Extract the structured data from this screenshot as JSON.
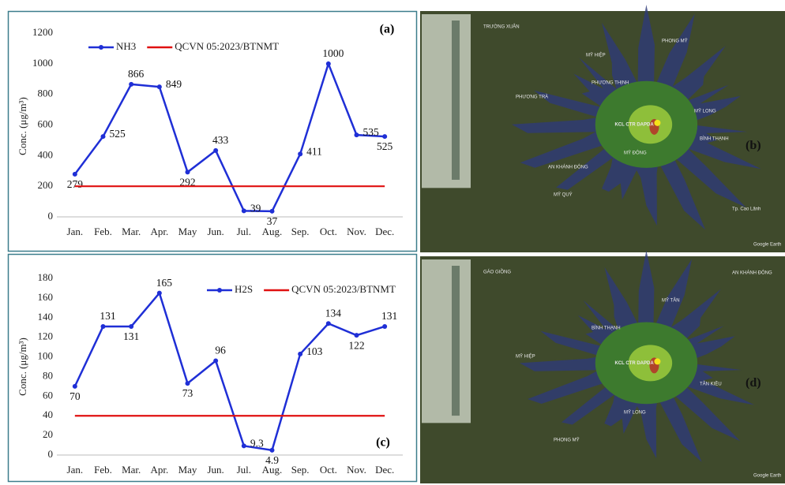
{
  "chart_data": [
    {
      "type": "line",
      "panel_label": "(a)",
      "y_label": "Conc. (μg/m³)",
      "categories": [
        "Jan.",
        "Feb.",
        "Mar.",
        "Apr.",
        "May",
        "Jun.",
        "Jul.",
        "Aug.",
        "Sep.",
        "Oct.",
        "Nov.",
        "Dec."
      ],
      "series": [
        {
          "name": "NH3",
          "color": "#1f2fd6",
          "markers": true,
          "show_values": true,
          "values": [
            279,
            525,
            866,
            849,
            292,
            433,
            39,
            37,
            411,
            1000,
            535,
            525
          ]
        },
        {
          "name": "QCVN 05:2023/BTNMT",
          "color": "#e01010",
          "markers": false,
          "show_values": false,
          "values": [
            200,
            200,
            200,
            200,
            200,
            200,
            200,
            200,
            200,
            200,
            200,
            200
          ]
        }
      ],
      "ylim": [
        0,
        1200
      ],
      "yticks": [
        0,
        200,
        400,
        600,
        800,
        1000,
        1200
      ],
      "grid": false
    },
    {
      "type": "line",
      "panel_label": "(c)",
      "y_label": "Conc. (μg/m³)",
      "categories": [
        "Jan.",
        "Feb.",
        "Mar.",
        "Apr.",
        "May",
        "Jun.",
        "Jul.",
        "Aug.",
        "Sep.",
        "Oct.",
        "Nov.",
        "Dec."
      ],
      "series": [
        {
          "name": "H2S",
          "color": "#1f2fd6",
          "markers": true,
          "show_values": true,
          "values": [
            70,
            131,
            131,
            165,
            73,
            96,
            9.3,
            4.9,
            103,
            134,
            122,
            131
          ]
        },
        {
          "name": "QCVN 05:2023/BTNMT",
          "color": "#e01010",
          "markers": false,
          "show_values": false,
          "values": [
            40,
            40,
            40,
            40,
            40,
            40,
            40,
            40,
            40,
            40,
            40,
            40
          ]
        }
      ],
      "ylim": [
        0,
        180
      ],
      "yticks": [
        0,
        20,
        40,
        60,
        80,
        100,
        120,
        140,
        160,
        180
      ],
      "grid": false
    }
  ],
  "maps": [
    {
      "panel_label": "(b)",
      "site_label": "KCL CTR DAPDA",
      "places": [
        "TRƯỜNG XUÂN",
        "PHƯƠNG THỊNH",
        "BÌNH THẠNH",
        "MỸ QUÝ",
        "PHONG MỸ",
        "PHƯƠNG TRÀ",
        "MỸ ĐÔNG",
        "Tp. Cao Lãnh",
        "MỸ HIỆP",
        "MỸ LONG",
        "AN KHÁNH ĐÔNG",
        "Google Earth"
      ]
    },
    {
      "panel_label": "(d)",
      "site_label": "KCL CTR DAPDA",
      "places": [
        "GÁO GIỒNG",
        "BÌNH THẠNH",
        "TÂN KIỀU",
        "PHONG MỸ",
        "MỸ TÂN",
        "MỸ HIỆP",
        "MỸ LONG",
        "AN KHÁNH ĐÔNG",
        "Google Earth"
      ]
    }
  ]
}
